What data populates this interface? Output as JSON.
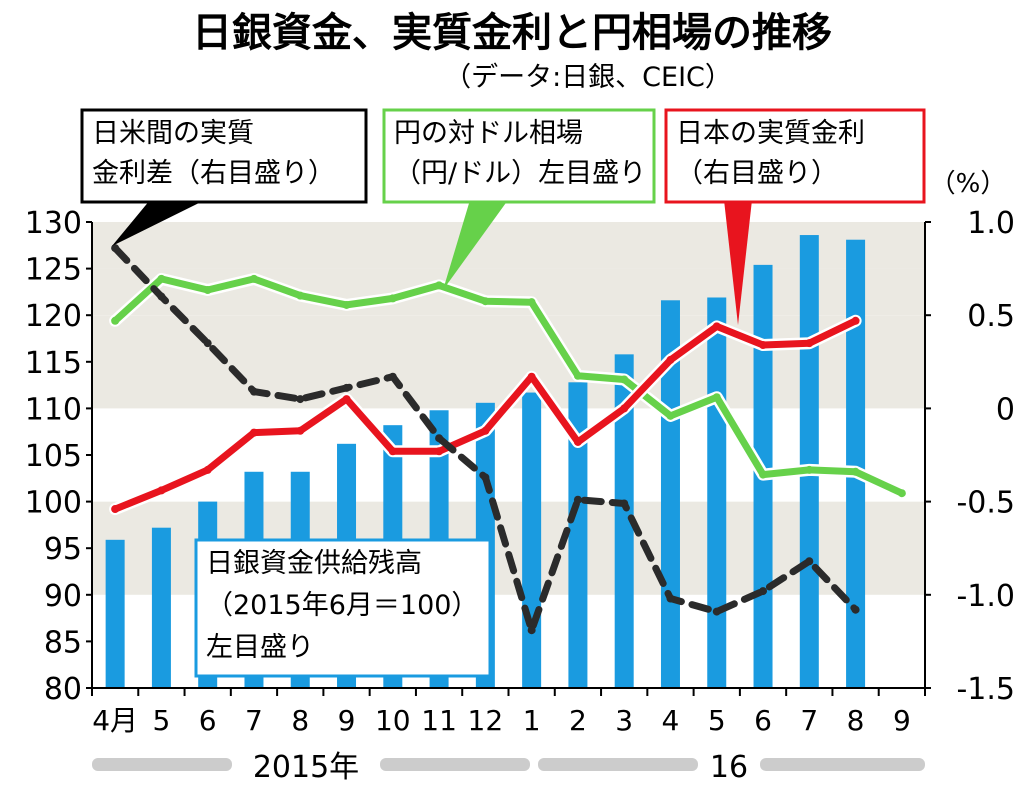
{
  "title": "日銀資金、実質金利と円相場の推移",
  "subtitle": "（データ:日銀、CEIC）",
  "right_axis_unit": "（%）",
  "year_labels": [
    "2015年",
    "16"
  ],
  "colors": {
    "bar": "#1a9be0",
    "yen_line": "#66d14a",
    "real_rate_line": "#e8141e",
    "diff_line": "#2b2b2b",
    "band": "#ebe9e2",
    "year_bar": "#cccccc"
  },
  "annotations": {
    "diff": {
      "lines": [
        "日米間の実質",
        "金利差（右目盛り）"
      ],
      "border": "#000000"
    },
    "yen": {
      "lines": [
        "円の対ドル相場",
        "（円/ドル）左目盛り"
      ],
      "border": "#66d14a"
    },
    "rate": {
      "lines": [
        "日本の実質金利",
        "（右目盛り）"
      ],
      "border": "#e8141e"
    },
    "supply": {
      "lines": [
        "日銀資金供給残高",
        "（2015年6月＝100）",
        "左目盛り"
      ],
      "border": "#1a9be0"
    }
  },
  "chart_data": {
    "type": "bar",
    "categories": [
      "4月",
      "5",
      "6",
      "7",
      "8",
      "9",
      "10",
      "11",
      "12",
      "1",
      "2",
      "3",
      "4",
      "5",
      "6",
      "7",
      "8",
      "9"
    ],
    "left_axis": {
      "ylim": [
        80,
        130
      ],
      "ticks": [
        "130",
        "125",
        "120",
        "115",
        "110",
        "105",
        "100",
        "95",
        "90",
        "85",
        "80"
      ]
    },
    "right_axis": {
      "ylim": [
        -1.5,
        1.0
      ],
      "ticks": [
        "1.0",
        "0.5",
        "0",
        "-0.5",
        "-1.0",
        "-1.5"
      ]
    },
    "series": [
      {
        "name": "日銀資金供給残高（2015年6月＝100）左目盛り",
        "kind": "bar",
        "axis": "left",
        "values": [
          95.9,
          97.2,
          100,
          103.2,
          103.2,
          106.2,
          108.2,
          109.8,
          110.6,
          111.7,
          112.8,
          115.8,
          121.6,
          121.9,
          125.4,
          128.6,
          128.1,
          null
        ]
      },
      {
        "name": "円の対ドル相場（円/ドル）左目盛り",
        "kind": "line",
        "axis": "left",
        "values": [
          119.4,
          123.9,
          122.7,
          123.9,
          122.1,
          121.1,
          121.8,
          123.2,
          121.5,
          121.4,
          113.5,
          113.1,
          109.2,
          111.2,
          102.9,
          103.4,
          103.2,
          100.9
        ]
      },
      {
        "name": "日本の実質金利（右目盛り）",
        "kind": "line",
        "axis": "right",
        "values": [
          -0.54,
          -0.44,
          -0.33,
          -0.13,
          -0.12,
          0.05,
          -0.23,
          -0.23,
          -0.12,
          0.17,
          -0.18,
          0.0,
          0.26,
          0.44,
          0.34,
          0.35,
          0.47,
          null
        ]
      },
      {
        "name": "日米間の実質金利差（右目盛り）",
        "kind": "line",
        "axis": "right",
        "style": "dashed",
        "values": [
          0.86,
          0.6,
          0.35,
          0.09,
          0.05,
          0.11,
          0.17,
          -0.16,
          -0.37,
          -1.19,
          -0.49,
          -0.51,
          -1.02,
          -1.09,
          -0.98,
          -0.82,
          -1.08,
          null
        ]
      }
    ],
    "grid": "alternating horizontal bands",
    "legend": "callout boxes above plot"
  }
}
